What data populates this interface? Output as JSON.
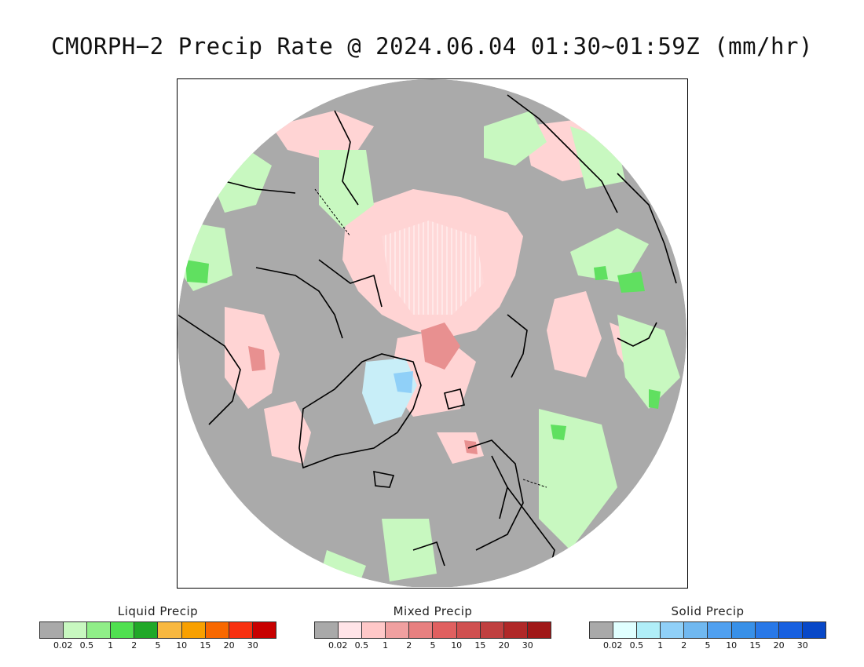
{
  "title": "CMORPH−2 Precip Rate @ 2024.06.04 01:30~01:59Z (mm/hr)",
  "map": {
    "projection": "north-polar-stereographic",
    "colors": {
      "no_precip": "#aaaaaa",
      "frame": "#000000",
      "coast": "#000000"
    }
  },
  "legends": [
    {
      "id": "liquid",
      "title": "Liquid Precip",
      "colors": [
        "#a9a9a9",
        "#c8f8c0",
        "#90ee88",
        "#50e050",
        "#20a828",
        "#f8b840",
        "#f8a000",
        "#f86800",
        "#f83010",
        "#c80000"
      ],
      "ticks": [
        "0.02",
        "0.5",
        "1",
        "2",
        "5",
        "10",
        "15",
        "20",
        "30"
      ]
    },
    {
      "id": "mixed",
      "title": "Mixed Precip",
      "colors": [
        "#a9a9a9",
        "#ffe4e8",
        "#ffc8c8",
        "#f0a0a0",
        "#e88080",
        "#e06060",
        "#d05050",
        "#c04040",
        "#b02828",
        "#a01818"
      ],
      "ticks": [
        "0.02",
        "0.5",
        "1",
        "2",
        "5",
        "10",
        "15",
        "20",
        "30"
      ]
    },
    {
      "id": "solid",
      "title": "Solid Precip",
      "colors": [
        "#a9a9a9",
        "#e0ffff",
        "#b0eef8",
        "#90d0f8",
        "#70b8f0",
        "#50a0f0",
        "#3890e8",
        "#2878e8",
        "#1860e0",
        "#0848c8"
      ],
      "ticks": [
        "0.02",
        "0.5",
        "1",
        "2",
        "5",
        "10",
        "15",
        "20",
        "30"
      ]
    }
  ]
}
